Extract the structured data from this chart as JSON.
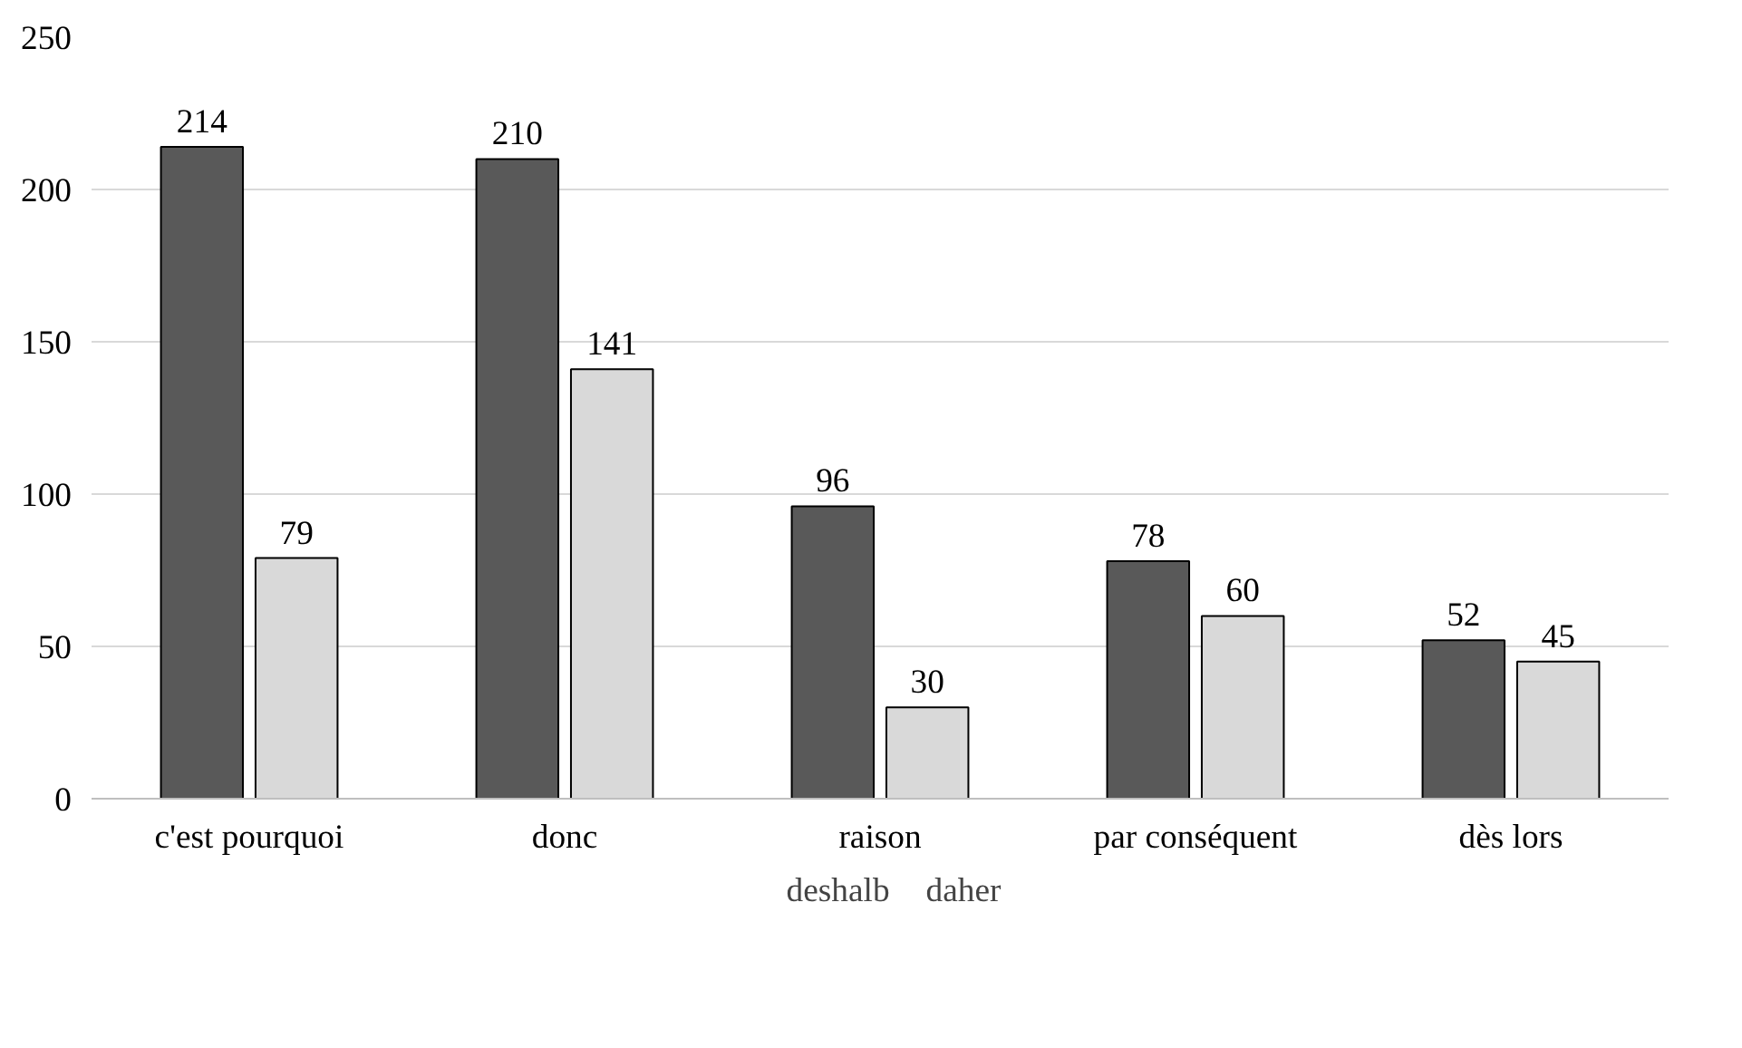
{
  "chart_data": {
    "type": "bar",
    "categories": [
      "c'est pourquoi",
      "donc",
      "raison",
      "par conséquent",
      "dès lors"
    ],
    "series": [
      {
        "name": "deshalb",
        "color": "#595959",
        "values": [
          214,
          210,
          96,
          78,
          52
        ]
      },
      {
        "name": "daher",
        "color": "#d9d9d9",
        "values": [
          79,
          141,
          30,
          60,
          45
        ]
      }
    ],
    "ylim": [
      0,
      250
    ],
    "yticks": [
      0,
      50,
      100,
      150,
      200,
      250
    ],
    "grid": "y",
    "legend": "bottom",
    "data_labels": true
  }
}
